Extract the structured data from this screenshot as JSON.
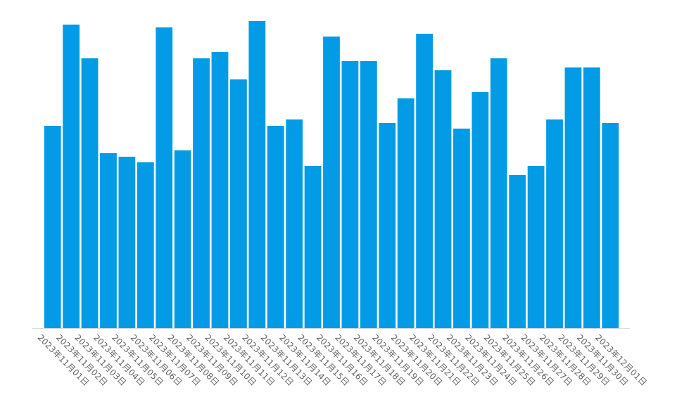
{
  "chart_data": {
    "type": "bar",
    "color": "#039be5",
    "categories": [
      "2023年11月01日",
      "2023年11月02日",
      "2023年11月03日",
      "2023年11月04日",
      "2023年11月05日",
      "2023年11月06日",
      "2023年11月07日",
      "2023年11月08日",
      "2023年11月09日",
      "2023年11月10日",
      "2023年11月11日",
      "2023年11月12日",
      "2023年11月13日",
      "2023年11月14日",
      "2023年11月15日",
      "2023年11月16日",
      "2023年11月17日",
      "2023年11月18日",
      "2023年11月19日",
      "2023年11月20日",
      "2023年11月21日",
      "2023年11月22日",
      "2023年11月23日",
      "2023年11月24日",
      "2023年11月25日",
      "2023年11月26日",
      "2023年11月27日",
      "2023年11月28日",
      "2023年11月29日",
      "2023年11月30日",
      "2023年12月01日"
    ],
    "values": [
      288,
      432,
      384,
      249,
      244,
      236,
      428,
      253,
      384,
      393,
      354,
      437,
      288,
      297,
      231,
      415,
      380,
      380,
      292,
      327,
      419,
      367,
      284,
      336,
      384,
      218,
      231,
      297,
      371,
      371,
      292
    ],
    "ylim": [
      0,
      440
    ]
  }
}
